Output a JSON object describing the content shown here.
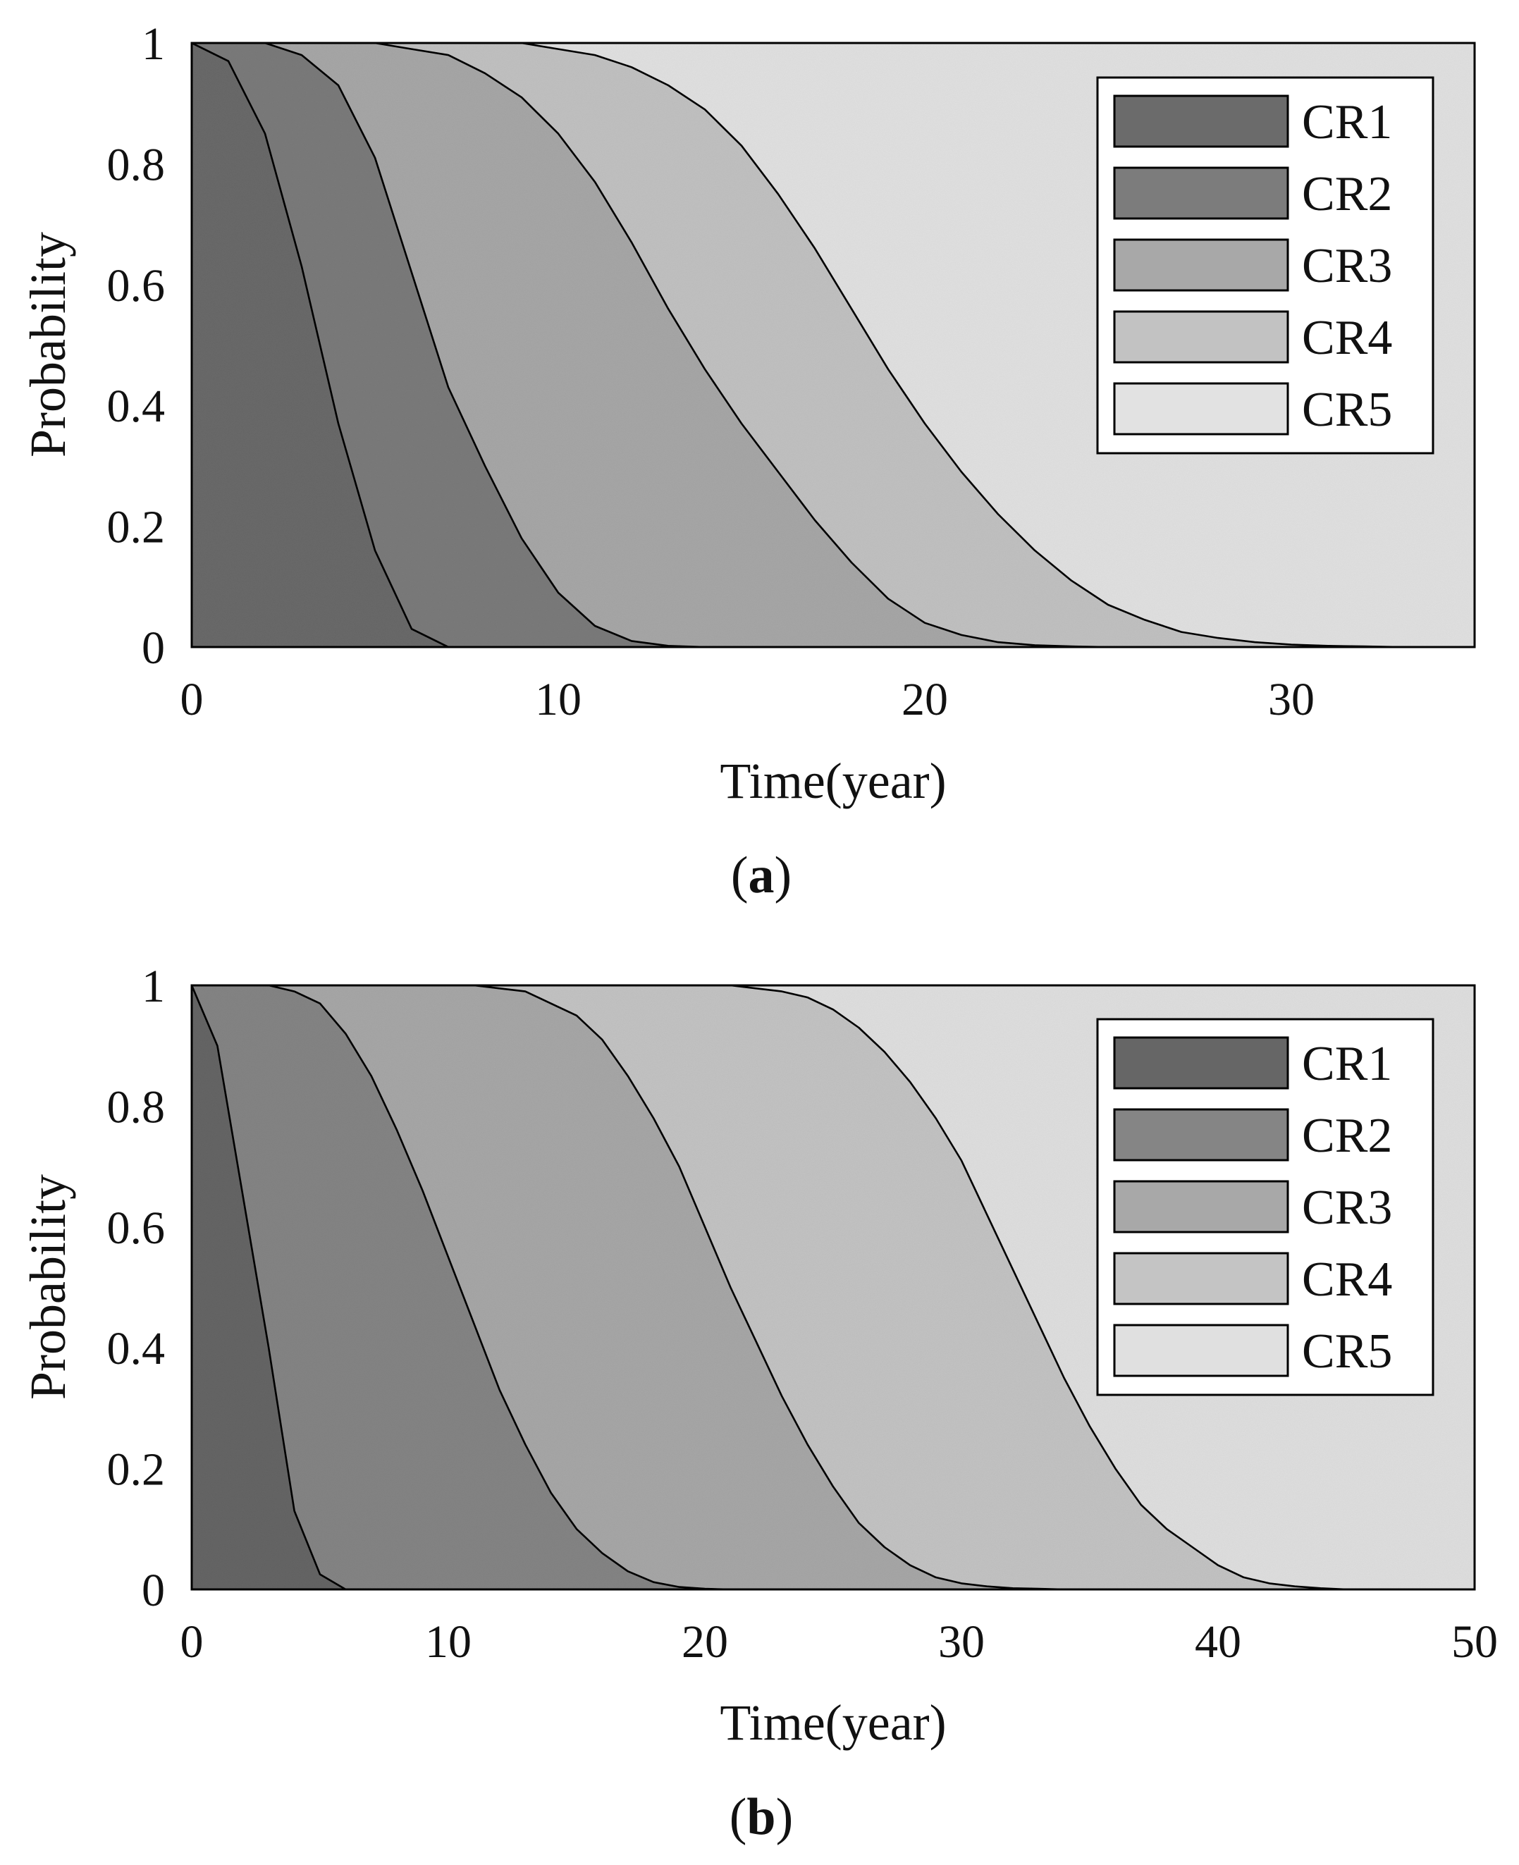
{
  "chart_data": [
    {
      "id": "a",
      "type": "area",
      "caption_letter": "a",
      "caption_open": "(",
      "caption_close": ")",
      "xlabel": "Time(year)",
      "ylabel": "Probability",
      "xlim": [
        0,
        35
      ],
      "ylim": [
        0,
        1
      ],
      "xticks": [
        "0",
        "10",
        "20",
        "30"
      ],
      "xtick_values": [
        0,
        10,
        20,
        30
      ],
      "yticks": [
        "0",
        "0.2",
        "0.4",
        "0.6",
        "0.8",
        "1"
      ],
      "ytick_values": [
        0,
        0.2,
        0.4,
        0.6,
        0.8,
        1
      ],
      "x": [
        0,
        1,
        2,
        3,
        4,
        5,
        6,
        7,
        8,
        9,
        10,
        11,
        12,
        13,
        14,
        15,
        16,
        17,
        18,
        19,
        20,
        21,
        22,
        23,
        24,
        25,
        26,
        27,
        28,
        29,
        30,
        31,
        32,
        33,
        34,
        35
      ],
      "series": [
        {
          "name": "CR1",
          "color": "#6b6b6b",
          "values": [
            1,
            0.97,
            0.85,
            0.63,
            0.37,
            0.16,
            0.03,
            0,
            0,
            0,
            0,
            0,
            0,
            0,
            0,
            0,
            0,
            0,
            0,
            0,
            0,
            0,
            0,
            0,
            0,
            0,
            0,
            0,
            0,
            0,
            0,
            0,
            0,
            0,
            0,
            0
          ]
        },
        {
          "name": "CR2",
          "color": "#7c7c7c",
          "values": [
            1,
            1,
            1,
            0.98,
            0.93,
            0.81,
            0.62,
            0.43,
            0.3,
            0.18,
            0.09,
            0.035,
            0.01,
            0.002,
            0,
            0,
            0,
            0,
            0,
            0,
            0,
            0,
            0,
            0,
            0,
            0,
            0,
            0,
            0,
            0,
            0,
            0,
            0,
            0,
            0,
            0
          ]
        },
        {
          "name": "CR3",
          "color": "#a8a8a8",
          "values": [
            1,
            1,
            1,
            1,
            1,
            1,
            0.99,
            0.98,
            0.95,
            0.91,
            0.85,
            0.77,
            0.67,
            0.56,
            0.46,
            0.37,
            0.29,
            0.21,
            0.14,
            0.08,
            0.04,
            0.02,
            0.008,
            0.003,
            0.001,
            0,
            0,
            0,
            0,
            0,
            0,
            0,
            0,
            0,
            0,
            0
          ]
        },
        {
          "name": "CR4",
          "color": "#c2c2c2",
          "values": [
            1,
            1,
            1,
            1,
            1,
            1,
            1,
            1,
            1,
            1,
            0.99,
            0.98,
            0.96,
            0.93,
            0.89,
            0.83,
            0.75,
            0.66,
            0.56,
            0.46,
            0.37,
            0.29,
            0.22,
            0.16,
            0.11,
            0.07,
            0.045,
            0.025,
            0.015,
            0.008,
            0.004,
            0.002,
            0.001,
            0,
            0,
            0
          ]
        },
        {
          "name": "CR5",
          "color": "#e2e2e2",
          "values": [
            1,
            1,
            1,
            1,
            1,
            1,
            1,
            1,
            1,
            1,
            1,
            1,
            1,
            1,
            1,
            1,
            1,
            1,
            1,
            1,
            1,
            1,
            1,
            1,
            1,
            1,
            1,
            1,
            1,
            1,
            1,
            1,
            1,
            1,
            1,
            1
          ]
        }
      ]
    },
    {
      "id": "b",
      "type": "area",
      "caption_letter": "b",
      "caption_open": "(",
      "caption_close": ")",
      "xlabel": "Time(year)",
      "ylabel": "Probability",
      "xlim": [
        0,
        50
      ],
      "ylim": [
        0,
        1
      ],
      "xticks": [
        "0",
        "10",
        "20",
        "30",
        "40",
        "50"
      ],
      "xtick_values": [
        0,
        10,
        20,
        30,
        40,
        50
      ],
      "yticks": [
        "0",
        "0.2",
        "0.4",
        "0.6",
        "0.8",
        "1"
      ],
      "ytick_values": [
        0,
        0.2,
        0.4,
        0.6,
        0.8,
        1
      ],
      "x": [
        0,
        1,
        2,
        3,
        4,
        5,
        6,
        7,
        8,
        9,
        10,
        11,
        12,
        13,
        14,
        15,
        16,
        17,
        18,
        19,
        20,
        21,
        22,
        23,
        24,
        25,
        26,
        27,
        28,
        29,
        30,
        31,
        32,
        33,
        34,
        35,
        36,
        37,
        38,
        39,
        40,
        41,
        42,
        43,
        44,
        45,
        46,
        47,
        48,
        49,
        50
      ],
      "series": [
        {
          "name": "CR1",
          "color": "#666666",
          "values": [
            1,
            0.9,
            0.65,
            0.4,
            0.13,
            0.025,
            0,
            0,
            0,
            0,
            0,
            0,
            0,
            0,
            0,
            0,
            0,
            0,
            0,
            0,
            0,
            0,
            0,
            0,
            0,
            0,
            0,
            0,
            0,
            0,
            0,
            0,
            0,
            0,
            0,
            0,
            0,
            0,
            0,
            0,
            0,
            0,
            0,
            0,
            0,
            0,
            0,
            0,
            0,
            0,
            0
          ]
        },
        {
          "name": "CR2",
          "color": "#858585",
          "values": [
            1,
            1,
            1,
            1,
            0.99,
            0.97,
            0.92,
            0.85,
            0.76,
            0.66,
            0.55,
            0.44,
            0.33,
            0.24,
            0.16,
            0.1,
            0.06,
            0.03,
            0.012,
            0.004,
            0.001,
            0,
            0,
            0,
            0,
            0,
            0,
            0,
            0,
            0,
            0,
            0,
            0,
            0,
            0,
            0,
            0,
            0,
            0,
            0,
            0,
            0,
            0,
            0,
            0,
            0,
            0,
            0,
            0,
            0,
            0
          ]
        },
        {
          "name": "CR3",
          "color": "#a8a8a8",
          "values": [
            1,
            1,
            1,
            1,
            1,
            1,
            1,
            1,
            1,
            1,
            1,
            1,
            0.995,
            0.99,
            0.97,
            0.95,
            0.91,
            0.85,
            0.78,
            0.7,
            0.6,
            0.5,
            0.41,
            0.32,
            0.24,
            0.17,
            0.11,
            0.07,
            0.04,
            0.02,
            0.01,
            0.005,
            0.002,
            0.001,
            0,
            0,
            0,
            0,
            0,
            0,
            0,
            0,
            0,
            0,
            0,
            0,
            0,
            0,
            0,
            0,
            0
          ]
        },
        {
          "name": "CR4",
          "color": "#c4c4c4",
          "values": [
            1,
            1,
            1,
            1,
            1,
            1,
            1,
            1,
            1,
            1,
            1,
            1,
            1,
            1,
            1,
            1,
            1,
            1,
            1,
            1,
            1,
            1,
            0.995,
            0.99,
            0.98,
            0.96,
            0.93,
            0.89,
            0.84,
            0.78,
            0.71,
            0.62,
            0.53,
            0.44,
            0.35,
            0.27,
            0.2,
            0.14,
            0.1,
            0.07,
            0.04,
            0.02,
            0.01,
            0.005,
            0.002,
            0,
            0,
            0,
            0,
            0,
            0
          ]
        },
        {
          "name": "CR5",
          "color": "#e0e0e0",
          "values": [
            1,
            1,
            1,
            1,
            1,
            1,
            1,
            1,
            1,
            1,
            1,
            1,
            1,
            1,
            1,
            1,
            1,
            1,
            1,
            1,
            1,
            1,
            1,
            1,
            1,
            1,
            1,
            1,
            1,
            1,
            1,
            1,
            1,
            1,
            1,
            1,
            1,
            1,
            1,
            1,
            1,
            1,
            1,
            1,
            1,
            1,
            1,
            1,
            1,
            1,
            1
          ]
        }
      ]
    }
  ]
}
